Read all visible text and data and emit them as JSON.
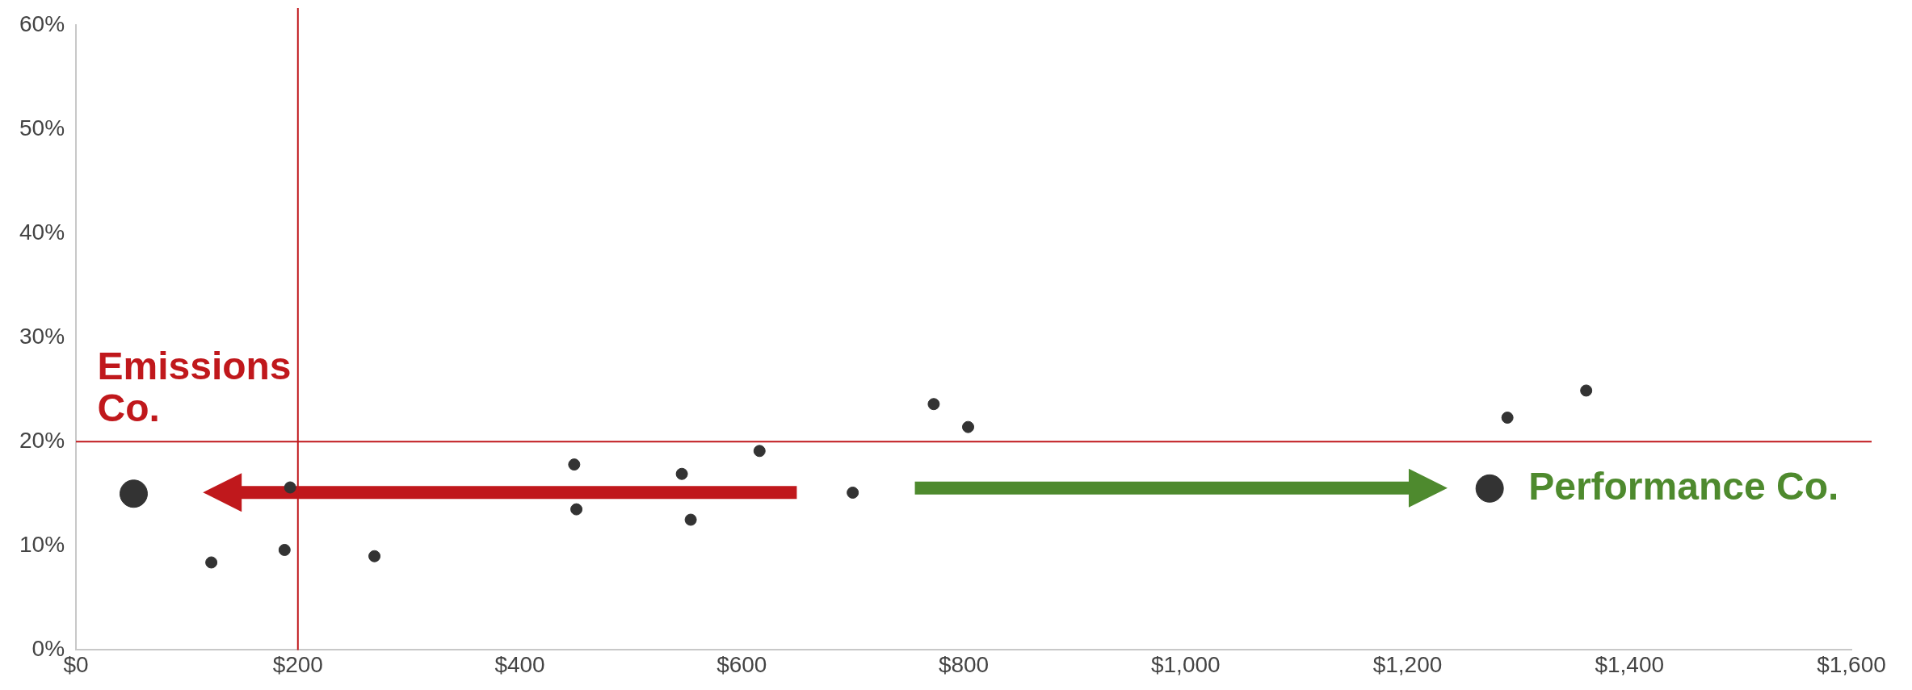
{
  "chart_data": {
    "type": "scatter",
    "xlim": [
      0,
      1600
    ],
    "xticks": [
      {
        "value": 0,
        "label": "$0"
      },
      {
        "value": 200,
        "label": "$200"
      },
      {
        "value": 400,
        "label": "$400"
      },
      {
        "value": 600,
        "label": "$600"
      },
      {
        "value": 800,
        "label": "$800"
      },
      {
        "value": 1000,
        "label": "$1,000"
      },
      {
        "value": 1200,
        "label": "$1,200"
      },
      {
        "value": 1400,
        "label": "$1,400"
      },
      {
        "value": 1600,
        "label": "$1,600"
      }
    ],
    "ylim": [
      0,
      60
    ],
    "yticks": [
      {
        "value": 0,
        "label": "0%"
      },
      {
        "value": 10,
        "label": "10%"
      },
      {
        "value": 20,
        "label": "20%"
      },
      {
        "value": 30,
        "label": "30%"
      },
      {
        "value": 40,
        "label": "40%"
      },
      {
        "value": 50,
        "label": "50%"
      },
      {
        "value": 60,
        "label": "60%"
      }
    ],
    "series": [
      {
        "color": "#333333",
        "x": [
          122,
          188,
          193,
          269,
          449,
          451,
          546,
          554,
          616,
          700,
          773,
          804,
          1290,
          1361
        ],
        "values": [
          8.4,
          9.6,
          15.6,
          9.0,
          17.8,
          13.5,
          16.9,
          12.5,
          19.1,
          15.1,
          23.6,
          21.4,
          22.3,
          24.9
        ]
      },
      {
        "color": "#333333",
        "x": [
          52,
          1274
        ],
        "values": [
          15.0,
          15.5
        ]
      }
    ],
    "ref_lines": [
      {
        "axis": "x",
        "value": 200,
        "color": "#c0181c"
      },
      {
        "axis": "y",
        "value": 20,
        "color": "#c0181c"
      }
    ],
    "annotations": [
      {
        "text": "Emissions Co.",
        "x": 52,
        "y": 15.0
      },
      {
        "text": "Performance Co.",
        "x": 1274,
        "y": 15.5
      }
    ],
    "grid": false,
    "legend": false,
    "marker": "circle"
  }
}
